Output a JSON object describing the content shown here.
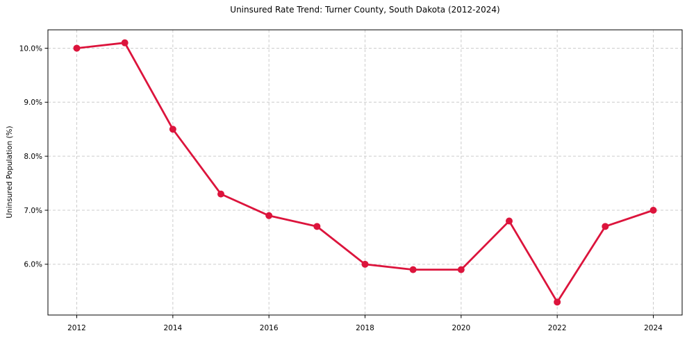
{
  "page": {
    "background_color": "#ffffff"
  },
  "chart_data": {
    "type": "line",
    "title": "Uninsured Rate Trend: Turner County, South Dakota (2012-2024)",
    "xlabel": "",
    "ylabel": "Uninsured Population (%)",
    "x": [
      2012,
      2013,
      2014,
      2015,
      2016,
      2017,
      2018,
      2019,
      2020,
      2021,
      2022,
      2023,
      2024
    ],
    "series": [
      {
        "name": "Uninsured Population (%)",
        "values": [
          10.0,
          10.1,
          8.5,
          7.3,
          6.9,
          6.7,
          6.0,
          5.9,
          5.9,
          6.8,
          5.3,
          6.7,
          7.0
        ],
        "color": "#dc143c",
        "marker": "circle",
        "line_width": 2.8,
        "marker_radius": 5
      }
    ],
    "x_ticks": [
      2012,
      2014,
      2016,
      2018,
      2020,
      2022,
      2024
    ],
    "x_tick_labels": [
      "2012",
      "2014",
      "2016",
      "2018",
      "2020",
      "2022",
      "2024"
    ],
    "y_ticks": [
      6.0,
      7.0,
      8.0,
      9.0,
      10.0
    ],
    "y_tick_labels": [
      "6.0%",
      "7.0%",
      "8.0%",
      "9.0%",
      "10.0%"
    ],
    "xlim": [
      2011.4,
      2024.6
    ],
    "ylim": [
      5.06,
      10.34
    ],
    "grid": true,
    "grid_color": "#cccccc",
    "grid_dash": "4 3",
    "axis_color": "#000000",
    "legend": false
  }
}
